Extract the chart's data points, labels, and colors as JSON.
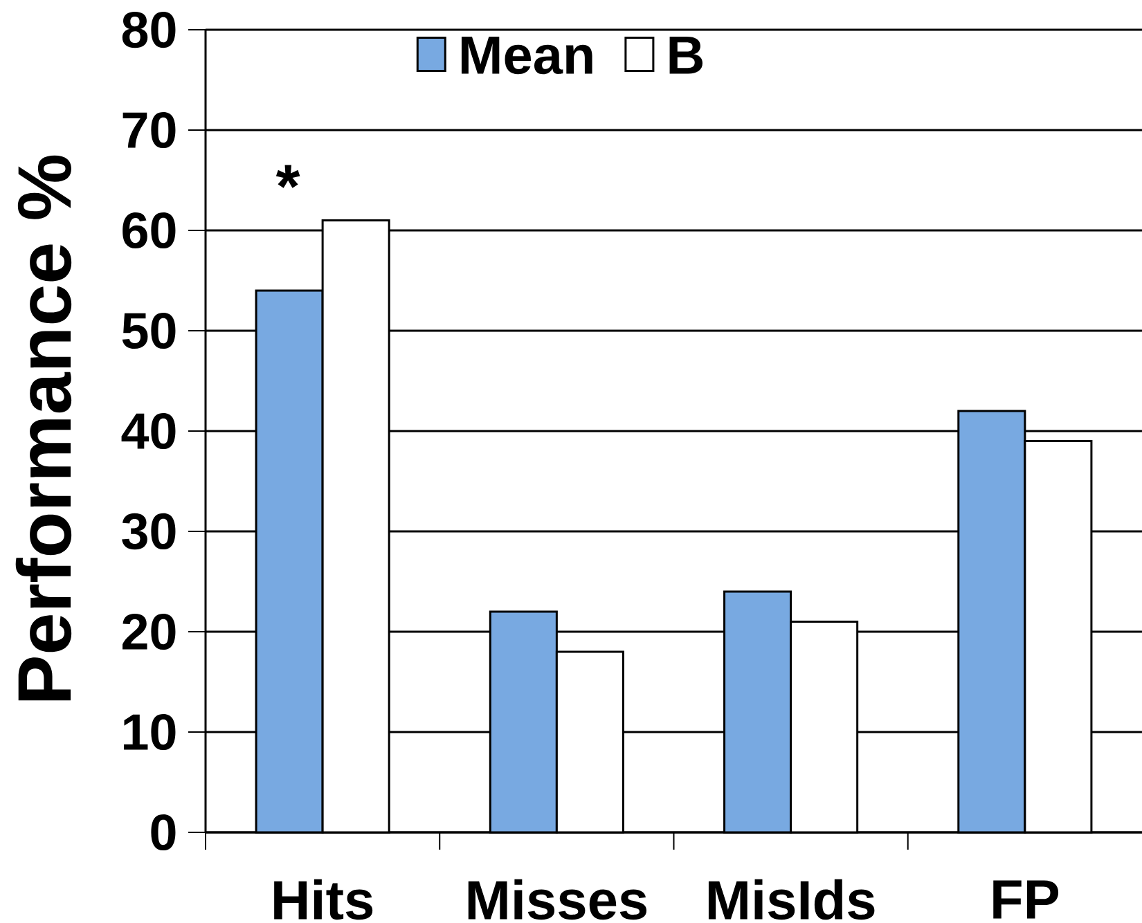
{
  "chart_data": {
    "type": "bar",
    "ylabel": "Performance %",
    "categories": [
      "Hits",
      "Misses",
      "MisIds",
      "FP"
    ],
    "series": [
      {
        "name": "Mean",
        "color": "#78a9e1",
        "values": [
          54,
          22,
          24,
          42
        ]
      },
      {
        "name": "B",
        "color": "#ffffff",
        "values": [
          61,
          18,
          21,
          39
        ]
      }
    ],
    "ylim": [
      0,
      80
    ],
    "yticks": [
      0,
      10,
      20,
      30,
      40,
      50,
      60,
      70,
      80
    ],
    "grid": "y",
    "legend": "top",
    "annotations": [
      "*"
    ]
  }
}
